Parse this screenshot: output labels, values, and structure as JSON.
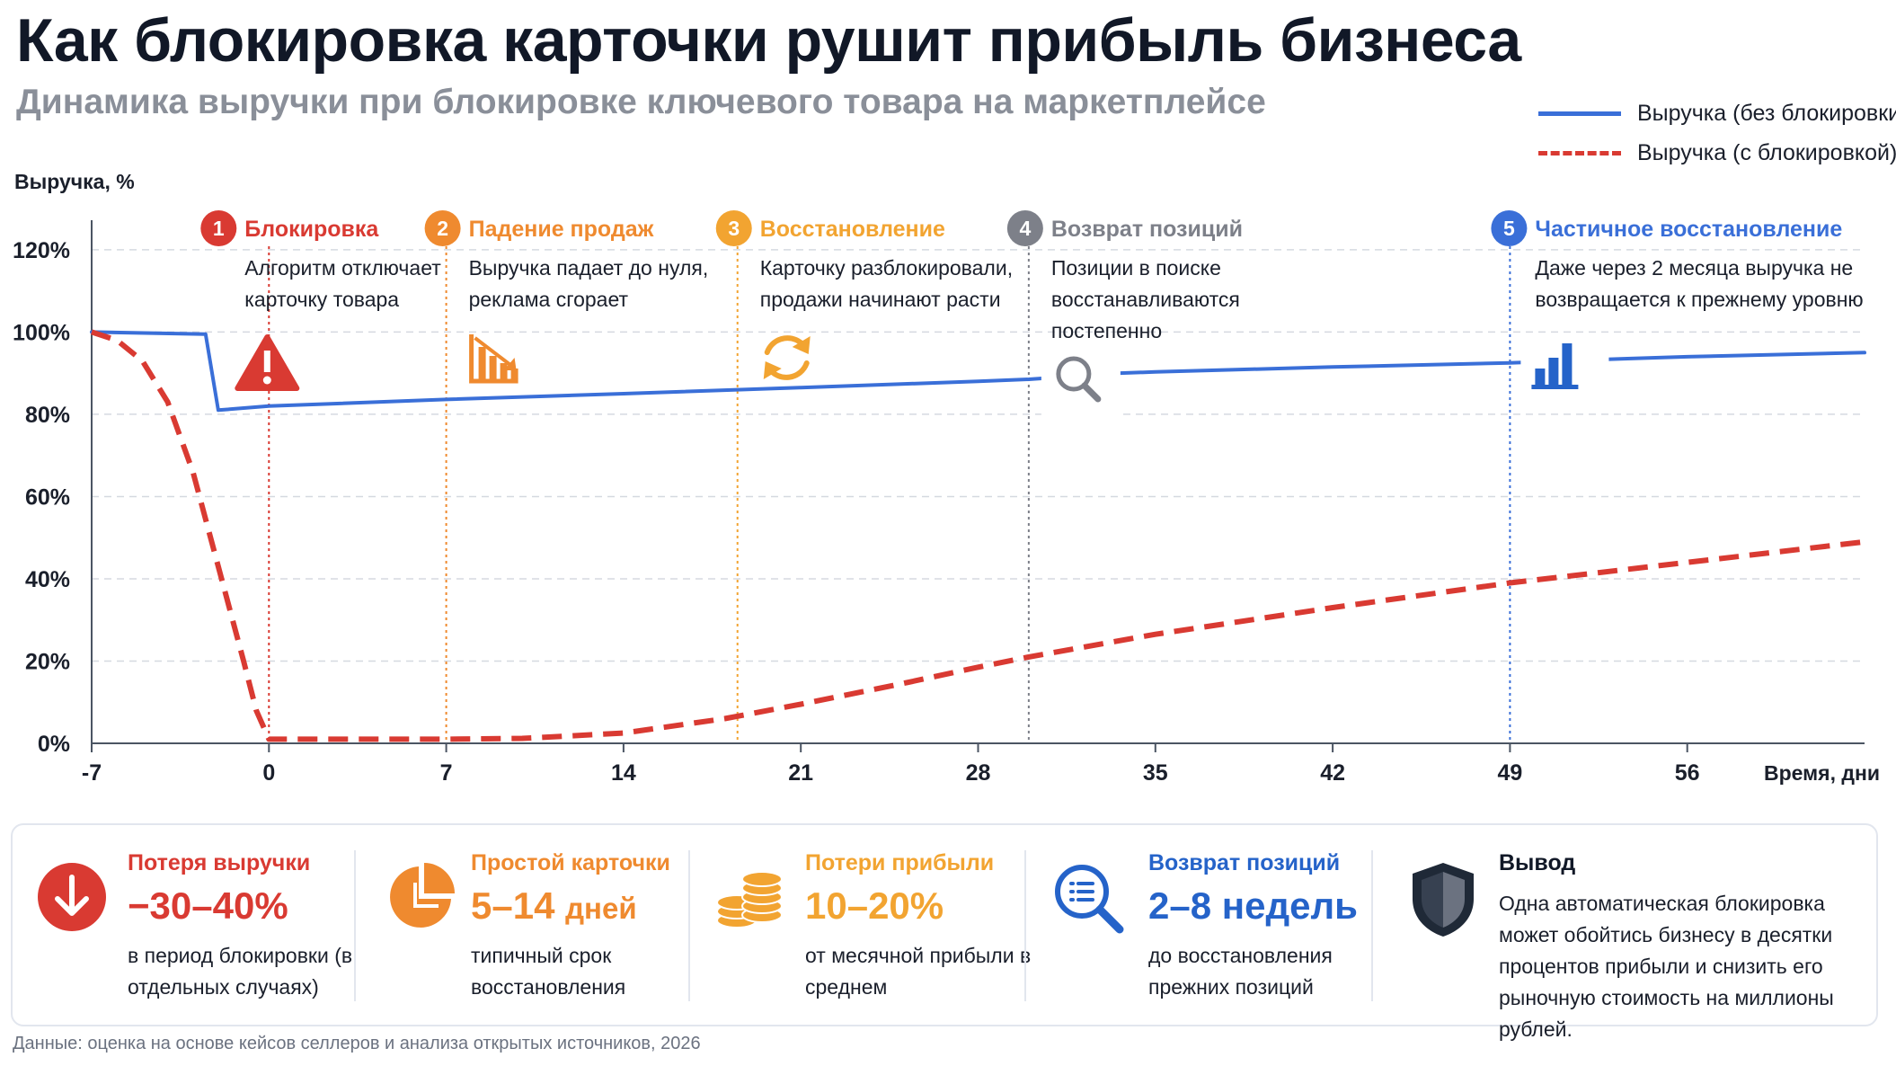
{
  "title": "Как блокировка карточки рушит прибыль бизнеса",
  "subtitle": "Динамика выручки при блокировке ключевого товара на маркетплейсе",
  "legend": {
    "solid": "Выручка (без блокировки)",
    "dashed": "Выручка (с блокировкой)"
  },
  "colors": {
    "blue": "#3a6fd8",
    "red": "#d93a32",
    "orange": "#ef8a2f",
    "yellow": "#f2a431",
    "gray": "#7d8089",
    "navy": "#1e3a8a"
  },
  "chart_data": {
    "type": "line",
    "ylabel": "Выручка, %",
    "xlabel": "Время, дни",
    "y_ticks": [
      "0%",
      "20%",
      "40%",
      "60%",
      "80%",
      "100%",
      "120%"
    ],
    "x_ticks": [
      "-7",
      "0",
      "7",
      "14",
      "21",
      "28",
      "35",
      "42",
      "49",
      "56"
    ],
    "xlim": [
      -7,
      63
    ],
    "ylim": [
      0,
      125
    ],
    "grid": true,
    "series": [
      {
        "name": "Выручка (без блокировки)",
        "style": "solid",
        "color": "#3a6fd8",
        "points": [
          [
            -7,
            100
          ],
          [
            -2.5,
            99.5
          ],
          [
            -2,
            81
          ],
          [
            0,
            82
          ],
          [
            7,
            83.6
          ],
          [
            14,
            85
          ],
          [
            21,
            86.5
          ],
          [
            28,
            88
          ],
          [
            30,
            88.5
          ],
          [
            33.5,
            90
          ],
          [
            35,
            90.3
          ],
          [
            42,
            91.5
          ],
          [
            49,
            92.5
          ],
          [
            53.5,
            93.5
          ],
          [
            56,
            94
          ],
          [
            63,
            95
          ]
        ]
      },
      {
        "name": "Выручка (с блокировкой)",
        "style": "dashed",
        "color": "#d93a32",
        "points": [
          [
            -7,
            100
          ],
          [
            -6,
            98
          ],
          [
            -5,
            93
          ],
          [
            -4,
            83
          ],
          [
            -3,
            66
          ],
          [
            -2,
            43
          ],
          [
            -1,
            20
          ],
          [
            -0.5,
            8
          ],
          [
            0,
            1
          ],
          [
            2,
            1
          ],
          [
            7,
            1
          ],
          [
            10,
            1.2
          ],
          [
            14,
            2.5
          ],
          [
            18,
            6
          ],
          [
            21,
            9.5
          ],
          [
            25,
            14.5
          ],
          [
            28,
            18.5
          ],
          [
            30,
            21
          ],
          [
            35,
            26.5
          ],
          [
            42,
            33
          ],
          [
            49,
            39
          ],
          [
            56,
            44
          ],
          [
            63,
            49
          ]
        ]
      }
    ],
    "events": [
      {
        "num": "1",
        "day": 0,
        "title": "Блокировка",
        "text": "Алгоритм отключает карточку товара",
        "color": "#d93a32",
        "icon": "warning-icon"
      },
      {
        "num": "2",
        "day": 7,
        "title": "Падение продаж",
        "text": "Выручка падает до нуля, реклама сгорает",
        "color": "#ef8a2f",
        "icon": "declining-chart-icon"
      },
      {
        "num": "3",
        "day": 18.5,
        "title": "Восстановление",
        "text": "Карточку разблокировали, продажи начинают расти",
        "color": "#f2a431",
        "icon": "refresh-icon"
      },
      {
        "num": "4",
        "day": 30,
        "title": "Возврат позиций",
        "text": "Позиции в поиске восстанавливаются постепенно",
        "color": "#7d8089",
        "icon": "search-icon"
      },
      {
        "num": "5",
        "day": 49,
        "title": "Частичное восстановление",
        "text": "Даже через 2 месяца выручка не возвращается к прежнему уровню",
        "color": "#3a6fd8",
        "icon": "bar-chart-icon"
      }
    ]
  },
  "cards": [
    {
      "title": "Потеря выручки",
      "value": "−30–40%",
      "text": "в период блокировки (в отдельных случаях)",
      "color": "#d93a32",
      "icon": "arrow-down-icon"
    },
    {
      "title": "Простой карточки",
      "value": "5–14",
      "value_unit": "дней",
      "text": "типичный срок восстановления",
      "color": "#ef8a2f",
      "icon": "pie-chart-icon"
    },
    {
      "title": "Потери прибыли",
      "value": "10–20%",
      "text": "от месячной прибыли в среднем",
      "color": "#f2a431",
      "icon": "coins-icon"
    },
    {
      "title": "Возврат позиций",
      "value": "2–8 недель",
      "text": "до восстановления прежних позиций",
      "color": "#2563c9",
      "icon": "search-list-icon"
    }
  ],
  "conclusion": {
    "title": "Вывод",
    "text": "Одна автоматическая блокировка может обойтись бизнесу в десятки процентов прибыли и снизить его рыночную стоимость на миллионы рублей.",
    "icon": "shield-icon"
  },
  "source": "Данные: оценка на основе кейсов селлеров и анализа открытых источников, 2026"
}
